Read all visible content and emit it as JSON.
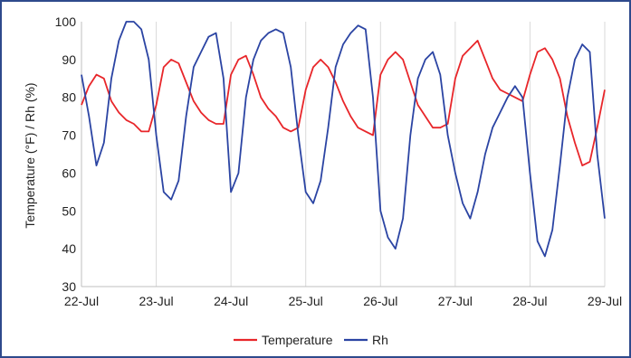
{
  "chart_data": {
    "type": "line",
    "title": "",
    "xlabel": "",
    "ylabel": "Temperature (°F) / Rh (%)",
    "ylim": [
      30,
      100
    ],
    "yticks": [
      "30",
      "40",
      "50",
      "60",
      "70",
      "80",
      "90",
      "100"
    ],
    "xlim": [
      0,
      7
    ],
    "categories": [
      "22-Jul",
      "23-Jul",
      "24-Jul",
      "25-Jul",
      "26-Jul",
      "27-Jul",
      "28-Jul",
      "29-Jul"
    ],
    "grid": "vertical",
    "legend_position": "bottom",
    "series": [
      {
        "name": "Temperature",
        "color": "#e8262a",
        "x": [
          0,
          0.1,
          0.2,
          0.3,
          0.4,
          0.5,
          0.6,
          0.7,
          0.8,
          0.9,
          1.0,
          1.1,
          1.2,
          1.3,
          1.4,
          1.5,
          1.6,
          1.7,
          1.8,
          1.9,
          2.0,
          2.1,
          2.2,
          2.3,
          2.4,
          2.5,
          2.6,
          2.7,
          2.8,
          2.9,
          3.0,
          3.1,
          3.2,
          3.3,
          3.4,
          3.5,
          3.6,
          3.7,
          3.8,
          3.9,
          4.0,
          4.1,
          4.2,
          4.3,
          4.4,
          4.5,
          4.6,
          4.7,
          4.8,
          4.9,
          5.0,
          5.1,
          5.2,
          5.3,
          5.4,
          5.5,
          5.6,
          5.7,
          5.8,
          5.9,
          6.0,
          6.1,
          6.2,
          6.3,
          6.4,
          6.5,
          6.6,
          6.7,
          6.8,
          6.9,
          7.0
        ],
        "y": [
          78,
          83,
          86,
          85,
          79,
          76,
          74,
          73,
          71,
          71,
          78,
          88,
          90,
          89,
          84,
          79,
          76,
          74,
          73,
          73,
          86,
          90,
          91,
          86,
          80,
          77,
          75,
          72,
          71,
          72,
          82,
          88,
          90,
          88,
          84,
          79,
          75,
          72,
          71,
          70,
          86,
          90,
          92,
          90,
          84,
          78,
          75,
          72,
          72,
          73,
          85,
          91,
          93,
          95,
          90,
          85,
          82,
          81,
          80,
          79,
          86,
          92,
          93,
          90,
          85,
          75,
          68,
          62,
          63,
          72,
          82
        ]
      },
      {
        "name": "Rh",
        "color": "#2b44a3",
        "x": [
          0,
          0.1,
          0.2,
          0.3,
          0.4,
          0.5,
          0.6,
          0.7,
          0.8,
          0.9,
          1.0,
          1.1,
          1.2,
          1.3,
          1.4,
          1.5,
          1.6,
          1.7,
          1.8,
          1.9,
          2.0,
          2.1,
          2.2,
          2.3,
          2.4,
          2.5,
          2.6,
          2.7,
          2.8,
          2.9,
          3.0,
          3.1,
          3.2,
          3.3,
          3.4,
          3.5,
          3.6,
          3.7,
          3.8,
          3.9,
          4.0,
          4.1,
          4.2,
          4.3,
          4.4,
          4.5,
          4.6,
          4.7,
          4.8,
          4.9,
          5.0,
          5.1,
          5.2,
          5.3,
          5.4,
          5.5,
          5.6,
          5.7,
          5.8,
          5.9,
          6.0,
          6.1,
          6.2,
          6.3,
          6.4,
          6.5,
          6.6,
          6.7,
          6.8,
          6.9,
          7.0
        ],
        "y": [
          86,
          75,
          62,
          68,
          85,
          95,
          100,
          100,
          98,
          90,
          70,
          55,
          53,
          58,
          75,
          88,
          92,
          96,
          97,
          85,
          55,
          60,
          80,
          90,
          95,
          97,
          98,
          97,
          88,
          70,
          55,
          52,
          58,
          72,
          88,
          94,
          97,
          99,
          98,
          80,
          50,
          43,
          40,
          48,
          70,
          85,
          90,
          92,
          86,
          70,
          60,
          52,
          48,
          55,
          65,
          72,
          76,
          80,
          83,
          80,
          60,
          42,
          38,
          45,
          62,
          80,
          90,
          94,
          92,
          65,
          48
        ]
      }
    ]
  }
}
